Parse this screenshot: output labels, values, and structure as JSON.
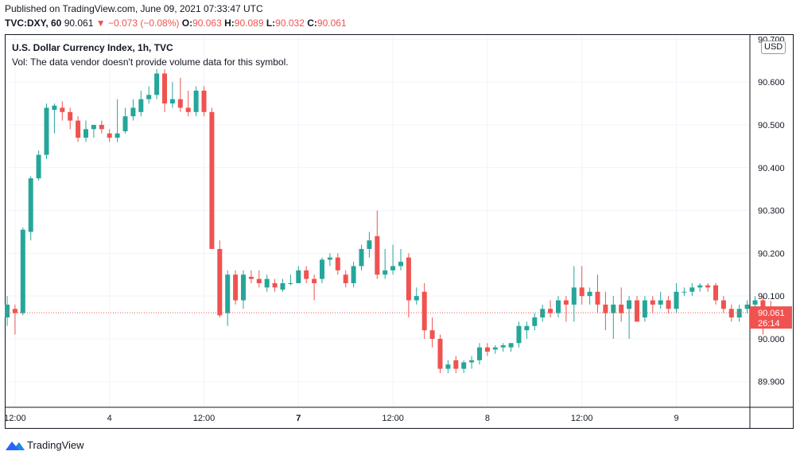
{
  "header": {
    "published": "Published on TradingView.com, June 09, 2021 07:33:47 UTC",
    "symbol": "TVC:DXY, 60",
    "last": "90.061",
    "arrow": "▼",
    "change": "−0.073 (−0.08%)",
    "o_label": "O:",
    "o_value": "90.063",
    "h_label": "H:",
    "h_value": "90.089",
    "l_label": "L:",
    "l_value": "90.032",
    "c_label": "C:",
    "c_value": "90.061"
  },
  "legend": {
    "title": "U.S. Dollar Currency Index, 1h, TVC",
    "volume_note": "Vol: The data vendor doesn't provide volume data for this symbol."
  },
  "price_axis": {
    "currency": "USD",
    "ticks": [
      "89.900",
      "90.000",
      "90.100",
      "90.200",
      "90.300",
      "90.400",
      "90.500",
      "90.600",
      "90.700"
    ]
  },
  "time_axis": {
    "ticks": [
      {
        "label": "12:00",
        "index": 1,
        "bold": false
      },
      {
        "label": "4",
        "index": 13,
        "bold": false
      },
      {
        "label": "12:00",
        "index": 25,
        "bold": false
      },
      {
        "label": "7",
        "index": 37,
        "bold": true
      },
      {
        "label": "12:00",
        "index": 49,
        "bold": false
      },
      {
        "label": "8",
        "index": 61,
        "bold": false
      },
      {
        "label": "12:00",
        "index": 73,
        "bold": false
      },
      {
        "label": "9",
        "index": 85,
        "bold": false
      }
    ]
  },
  "current": {
    "price": "90.061",
    "countdown": "26:14",
    "value": 90.061
  },
  "colors": {
    "up": "#26a69a",
    "down": "#ef5350",
    "grid": "#f0f3fa",
    "axis_text": "#131722"
  },
  "footer": {
    "brand": "TradingView"
  },
  "chart_data": {
    "type": "candlestick",
    "title": "U.S. Dollar Currency Index, 1h, TVC",
    "ylim": [
      89.84,
      90.71
    ],
    "grid": true,
    "candles": [
      {
        "o": 90.05,
        "h": 90.1,
        "l": 90.03,
        "c": 90.08
      },
      {
        "o": 90.07,
        "h": 90.08,
        "l": 90.01,
        "c": 90.06
      },
      {
        "o": 90.06,
        "h": 90.26,
        "l": 90.055,
        "c": 90.255
      },
      {
        "o": 90.25,
        "h": 90.38,
        "l": 90.23,
        "c": 90.375
      },
      {
        "o": 90.375,
        "h": 90.44,
        "l": 90.37,
        "c": 90.43
      },
      {
        "o": 90.43,
        "h": 90.55,
        "l": 90.42,
        "c": 90.54
      },
      {
        "o": 90.535,
        "h": 90.55,
        "l": 90.48,
        "c": 90.545
      },
      {
        "o": 90.54,
        "h": 90.555,
        "l": 90.51,
        "c": 90.53
      },
      {
        "o": 90.53,
        "h": 90.54,
        "l": 90.49,
        "c": 90.51
      },
      {
        "o": 90.51,
        "h": 90.52,
        "l": 90.46,
        "c": 90.47
      },
      {
        "o": 90.47,
        "h": 90.51,
        "l": 90.46,
        "c": 90.49
      },
      {
        "o": 90.49,
        "h": 90.5,
        "l": 90.47,
        "c": 90.5
      },
      {
        "o": 90.5,
        "h": 90.51,
        "l": 90.48,
        "c": 90.49
      },
      {
        "o": 90.48,
        "h": 90.49,
        "l": 90.46,
        "c": 90.47
      },
      {
        "o": 90.47,
        "h": 90.56,
        "l": 90.46,
        "c": 90.48
      },
      {
        "o": 90.485,
        "h": 90.54,
        "l": 90.48,
        "c": 90.52
      },
      {
        "o": 90.52,
        "h": 90.56,
        "l": 90.51,
        "c": 90.54
      },
      {
        "o": 90.53,
        "h": 90.58,
        "l": 90.52,
        "c": 90.56
      },
      {
        "o": 90.56,
        "h": 90.59,
        "l": 90.55,
        "c": 90.57
      },
      {
        "o": 90.57,
        "h": 90.63,
        "l": 90.56,
        "c": 90.62
      },
      {
        "o": 90.62,
        "h": 90.63,
        "l": 90.53,
        "c": 90.55
      },
      {
        "o": 90.55,
        "h": 90.6,
        "l": 90.54,
        "c": 90.56
      },
      {
        "o": 90.56,
        "h": 90.61,
        "l": 90.53,
        "c": 90.54
      },
      {
        "o": 90.54,
        "h": 90.58,
        "l": 90.52,
        "c": 90.53
      },
      {
        "o": 90.53,
        "h": 90.59,
        "l": 90.52,
        "c": 90.58
      },
      {
        "o": 90.58,
        "h": 90.59,
        "l": 90.52,
        "c": 90.53
      },
      {
        "o": 90.53,
        "h": 90.54,
        "l": 90.21,
        "c": 90.21
      },
      {
        "o": 90.21,
        "h": 90.23,
        "l": 90.05,
        "c": 90.055
      },
      {
        "o": 90.06,
        "h": 90.16,
        "l": 90.03,
        "c": 90.15
      },
      {
        "o": 90.15,
        "h": 90.16,
        "l": 90.08,
        "c": 90.09
      },
      {
        "o": 90.09,
        "h": 90.16,
        "l": 90.07,
        "c": 90.15
      },
      {
        "o": 90.145,
        "h": 90.16,
        "l": 90.13,
        "c": 90.14
      },
      {
        "o": 90.14,
        "h": 90.16,
        "l": 90.12,
        "c": 90.13
      },
      {
        "o": 90.12,
        "h": 90.15,
        "l": 90.11,
        "c": 90.14
      },
      {
        "o": 90.13,
        "h": 90.14,
        "l": 90.11,
        "c": 90.12
      },
      {
        "o": 90.115,
        "h": 90.14,
        "l": 90.11,
        "c": 90.13
      },
      {
        "o": 90.13,
        "h": 90.15,
        "l": 90.125,
        "c": 90.13
      },
      {
        "o": 90.13,
        "h": 90.17,
        "l": 90.13,
        "c": 90.16
      },
      {
        "o": 90.16,
        "h": 90.17,
        "l": 90.13,
        "c": 90.14
      },
      {
        "o": 90.14,
        "h": 90.15,
        "l": 90.09,
        "c": 90.13
      },
      {
        "o": 90.14,
        "h": 90.19,
        "l": 90.13,
        "c": 90.185
      },
      {
        "o": 90.185,
        "h": 90.2,
        "l": 90.17,
        "c": 90.19
      },
      {
        "o": 90.19,
        "h": 90.2,
        "l": 90.15,
        "c": 90.16
      },
      {
        "o": 90.15,
        "h": 90.16,
        "l": 90.12,
        "c": 90.13
      },
      {
        "o": 90.13,
        "h": 90.18,
        "l": 90.12,
        "c": 90.17
      },
      {
        "o": 90.17,
        "h": 90.22,
        "l": 90.16,
        "c": 90.21
      },
      {
        "o": 90.21,
        "h": 90.25,
        "l": 90.19,
        "c": 90.23
      },
      {
        "o": 90.24,
        "h": 90.3,
        "l": 90.14,
        "c": 90.15
      },
      {
        "o": 90.15,
        "h": 90.21,
        "l": 90.14,
        "c": 90.16
      },
      {
        "o": 90.16,
        "h": 90.22,
        "l": 90.15,
        "c": 90.17
      },
      {
        "o": 90.17,
        "h": 90.21,
        "l": 90.16,
        "c": 90.18
      },
      {
        "o": 90.19,
        "h": 90.2,
        "l": 90.05,
        "c": 90.09
      },
      {
        "o": 90.09,
        "h": 90.12,
        "l": 90.08,
        "c": 90.1
      },
      {
        "o": 90.11,
        "h": 90.13,
        "l": 90.0,
        "c": 90.02
      },
      {
        "o": 90.02,
        "h": 90.05,
        "l": 89.98,
        "c": 90.0
      },
      {
        "o": 90.0,
        "h": 90.01,
        "l": 89.92,
        "c": 89.93
      },
      {
        "o": 89.93,
        "h": 89.95,
        "l": 89.92,
        "c": 89.94
      },
      {
        "o": 89.95,
        "h": 89.96,
        "l": 89.92,
        "c": 89.93
      },
      {
        "o": 89.93,
        "h": 89.95,
        "l": 89.92,
        "c": 89.945
      },
      {
        "o": 89.945,
        "h": 89.96,
        "l": 89.93,
        "c": 89.95
      },
      {
        "o": 89.95,
        "h": 89.99,
        "l": 89.94,
        "c": 89.98
      },
      {
        "o": 89.98,
        "h": 89.99,
        "l": 89.96,
        "c": 89.97
      },
      {
        "o": 89.975,
        "h": 89.985,
        "l": 89.965,
        "c": 89.98
      },
      {
        "o": 89.98,
        "h": 89.99,
        "l": 89.97,
        "c": 89.985
      },
      {
        "o": 89.98,
        "h": 89.99,
        "l": 89.97,
        "c": 89.99
      },
      {
        "o": 89.99,
        "h": 90.04,
        "l": 89.98,
        "c": 90.03
      },
      {
        "o": 90.02,
        "h": 90.04,
        "l": 90.0,
        "c": 90.03
      },
      {
        "o": 90.03,
        "h": 90.06,
        "l": 90.02,
        "c": 90.05
      },
      {
        "o": 90.05,
        "h": 90.08,
        "l": 90.04,
        "c": 90.07
      },
      {
        "o": 90.07,
        "h": 90.09,
        "l": 90.05,
        "c": 90.06
      },
      {
        "o": 90.06,
        "h": 90.1,
        "l": 90.05,
        "c": 90.09
      },
      {
        "o": 90.09,
        "h": 90.1,
        "l": 90.04,
        "c": 90.08
      },
      {
        "o": 90.08,
        "h": 90.17,
        "l": 90.04,
        "c": 90.12
      },
      {
        "o": 90.12,
        "h": 90.17,
        "l": 90.08,
        "c": 90.1
      },
      {
        "o": 90.1,
        "h": 90.12,
        "l": 90.08,
        "c": 90.11
      },
      {
        "o": 90.11,
        "h": 90.15,
        "l": 90.06,
        "c": 90.08
      },
      {
        "o": 90.08,
        "h": 90.11,
        "l": 90.02,
        "c": 90.06
      },
      {
        "o": 90.06,
        "h": 90.1,
        "l": 90.0,
        "c": 90.08
      },
      {
        "o": 90.08,
        "h": 90.12,
        "l": 90.04,
        "c": 90.06
      },
      {
        "o": 90.07,
        "h": 90.1,
        "l": 90.0,
        "c": 90.09
      },
      {
        "o": 90.09,
        "h": 90.1,
        "l": 90.04,
        "c": 90.04
      },
      {
        "o": 90.05,
        "h": 90.1,
        "l": 90.04,
        "c": 90.09
      },
      {
        "o": 90.09,
        "h": 90.1,
        "l": 90.06,
        "c": 90.08
      },
      {
        "o": 90.08,
        "h": 90.11,
        "l": 90.07,
        "c": 90.09
      },
      {
        "o": 90.09,
        "h": 90.1,
        "l": 90.06,
        "c": 90.07
      },
      {
        "o": 90.07,
        "h": 90.13,
        "l": 90.06,
        "c": 90.11
      },
      {
        "o": 90.11,
        "h": 90.12,
        "l": 90.1,
        "c": 90.11
      },
      {
        "o": 90.11,
        "h": 90.13,
        "l": 90.1,
        "c": 90.12
      },
      {
        "o": 90.12,
        "h": 90.13,
        "l": 90.11,
        "c": 90.125
      },
      {
        "o": 90.125,
        "h": 90.13,
        "l": 90.11,
        "c": 90.12
      },
      {
        "o": 90.125,
        "h": 90.13,
        "l": 90.08,
        "c": 90.09
      },
      {
        "o": 90.09,
        "h": 90.1,
        "l": 90.06,
        "c": 90.07
      },
      {
        "o": 90.07,
        "h": 90.08,
        "l": 90.04,
        "c": 90.05
      },
      {
        "o": 90.05,
        "h": 90.08,
        "l": 90.04,
        "c": 90.07
      },
      {
        "o": 90.07,
        "h": 90.09,
        "l": 90.06,
        "c": 90.08
      },
      {
        "o": 90.08,
        "h": 90.1,
        "l": 90.07,
        "c": 90.09
      },
      {
        "o": 90.09,
        "h": 90.1,
        "l": 90.01,
        "c": 90.06
      },
      {
        "o": 90.063,
        "h": 90.089,
        "l": 90.032,
        "c": 90.061
      }
    ]
  }
}
